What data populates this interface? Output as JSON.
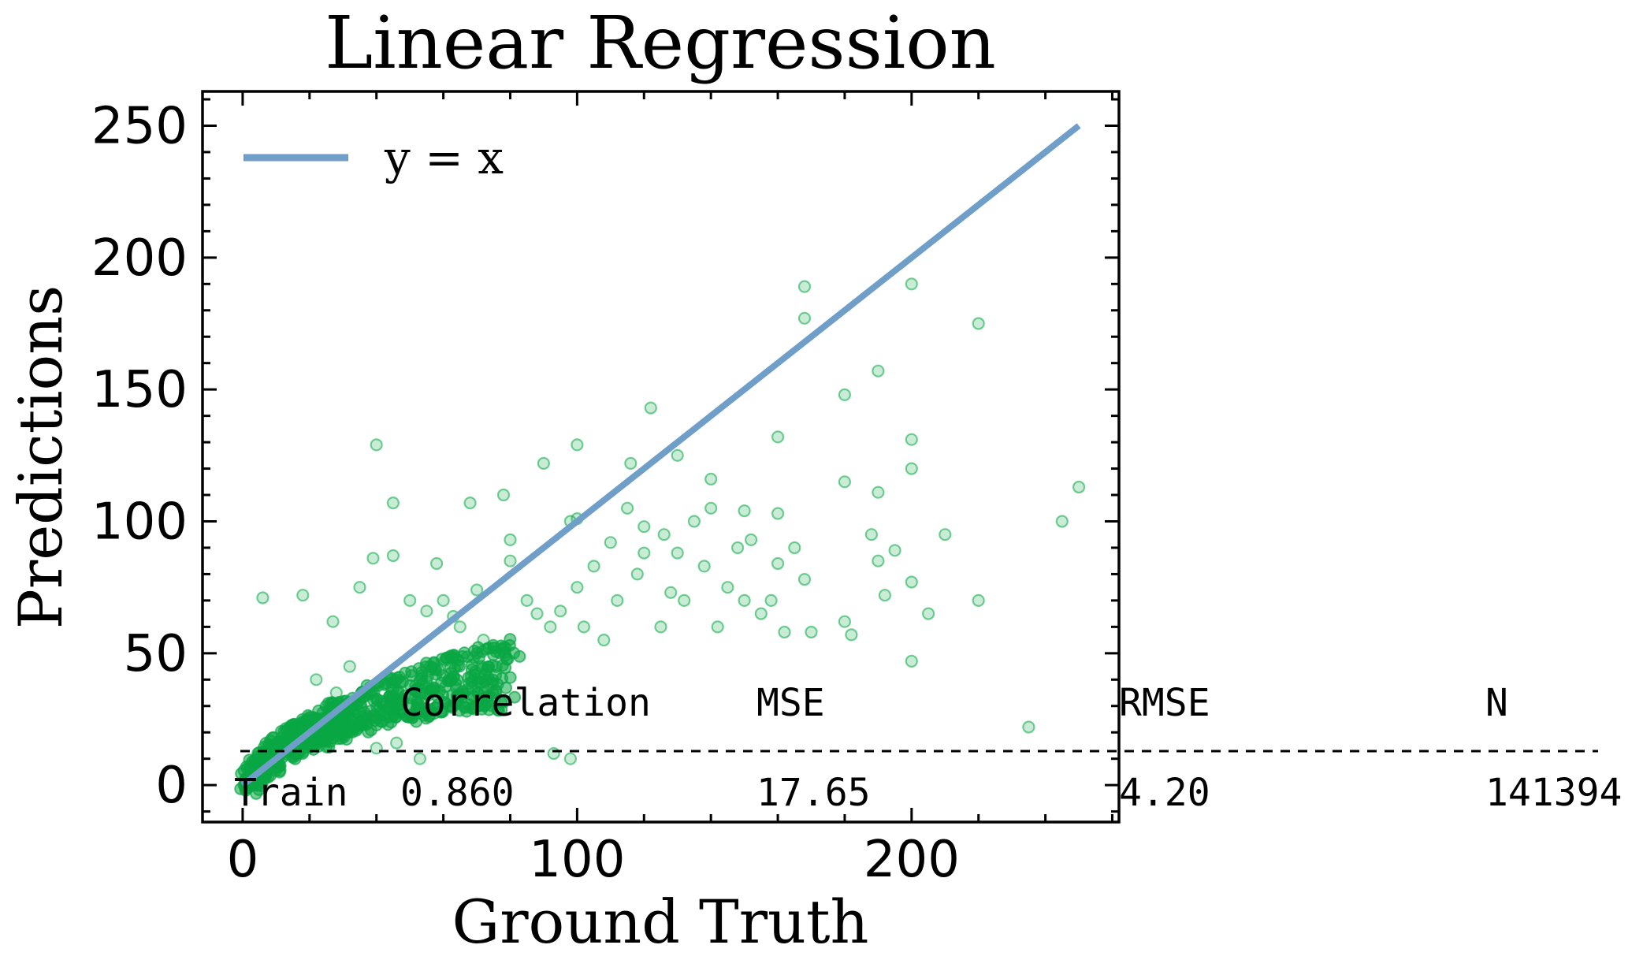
{
  "chart_data": {
    "type": "scatter",
    "title": "Linear Regression",
    "xlabel": "Ground Truth",
    "ylabel": "Predictions",
    "xlim": [
      -12,
      262
    ],
    "ylim": [
      -14,
      263
    ],
    "xticks": [
      0,
      100,
      200
    ],
    "yticks": [
      0,
      50,
      100,
      150,
      200,
      250
    ],
    "x_minor_step": 20,
    "y_minor_step": 10,
    "grid": false,
    "legend_position": "top-left",
    "colors": {
      "points": "#0aa744",
      "identity_line": "#6f9fc8",
      "axes": "#000000"
    },
    "series": [
      {
        "kind": "line",
        "name": "y = x",
        "x": [
          0,
          250
        ],
        "y": [
          0,
          250
        ]
      },
      {
        "kind": "scatter",
        "dense_cloud": [
          [
            2,
            1
          ],
          [
            5,
            6
          ],
          [
            10,
            12
          ],
          [
            15,
            17
          ],
          [
            20,
            20
          ],
          [
            25,
            22
          ],
          [
            30,
            26
          ],
          [
            40,
            30
          ],
          [
            50,
            34
          ],
          [
            60,
            38
          ],
          [
            70,
            40
          ],
          [
            80,
            42
          ]
        ],
        "points": [
          [
            6,
            71
          ],
          [
            18,
            72
          ],
          [
            27,
            62
          ],
          [
            35,
            75
          ],
          [
            39,
            86
          ],
          [
            40,
            129
          ],
          [
            45,
            87
          ],
          [
            45,
            107
          ],
          [
            50,
            70
          ],
          [
            55,
            66
          ],
          [
            58,
            84
          ],
          [
            60,
            70
          ],
          [
            63,
            64
          ],
          [
            65,
            60
          ],
          [
            68,
            107
          ],
          [
            70,
            74
          ],
          [
            72,
            55
          ],
          [
            75,
            52
          ],
          [
            78,
            110
          ],
          [
            80,
            93
          ],
          [
            80,
            85
          ],
          [
            85,
            70
          ],
          [
            88,
            65
          ],
          [
            90,
            122
          ],
          [
            92,
            60
          ],
          [
            95,
            66
          ],
          [
            98,
            100
          ],
          [
            100,
            101
          ],
          [
            100,
            129
          ],
          [
            100,
            75
          ],
          [
            102,
            60
          ],
          [
            105,
            83
          ],
          [
            108,
            55
          ],
          [
            110,
            92
          ],
          [
            112,
            70
          ],
          [
            115,
            105
          ],
          [
            116,
            122
          ],
          [
            118,
            80
          ],
          [
            120,
            88
          ],
          [
            120,
            98
          ],
          [
            122,
            143
          ],
          [
            125,
            60
          ],
          [
            126,
            95
          ],
          [
            128,
            73
          ],
          [
            130,
            125
          ],
          [
            130,
            88
          ],
          [
            132,
            70
          ],
          [
            135,
            100
          ],
          [
            138,
            83
          ],
          [
            140,
            116
          ],
          [
            140,
            105
          ],
          [
            142,
            60
          ],
          [
            145,
            75
          ],
          [
            148,
            90
          ],
          [
            150,
            104
          ],
          [
            150,
            70
          ],
          [
            152,
            93
          ],
          [
            155,
            65
          ],
          [
            158,
            70
          ],
          [
            160,
            132
          ],
          [
            160,
            103
          ],
          [
            160,
            84
          ],
          [
            162,
            58
          ],
          [
            165,
            90
          ],
          [
            168,
            78
          ],
          [
            168,
            177
          ],
          [
            168,
            189
          ],
          [
            170,
            58
          ],
          [
            180,
            115
          ],
          [
            180,
            148
          ],
          [
            180,
            62
          ],
          [
            182,
            57
          ],
          [
            188,
            95
          ],
          [
            190,
            157
          ],
          [
            190,
            111
          ],
          [
            190,
            85
          ],
          [
            192,
            72
          ],
          [
            195,
            89
          ],
          [
            200,
            190
          ],
          [
            200,
            131
          ],
          [
            200,
            120
          ],
          [
            200,
            77
          ],
          [
            200,
            47
          ],
          [
            205,
            65
          ],
          [
            210,
            95
          ],
          [
            220,
            175
          ],
          [
            220,
            70
          ],
          [
            235,
            22
          ],
          [
            245,
            100
          ],
          [
            250,
            113
          ],
          [
            93,
            12
          ],
          [
            98,
            10
          ],
          [
            53,
            10
          ],
          [
            46,
            16
          ],
          [
            40,
            14
          ],
          [
            28,
            35
          ],
          [
            32,
            45
          ],
          [
            22,
            40
          ]
        ]
      }
    ],
    "stats_table": {
      "headers": [
        "",
        "Correlation",
        "MSE",
        "RMSE",
        "N"
      ],
      "rows": [
        [
          "Train",
          "0.860",
          "17.65",
          "4.20",
          "141394"
        ]
      ]
    }
  }
}
